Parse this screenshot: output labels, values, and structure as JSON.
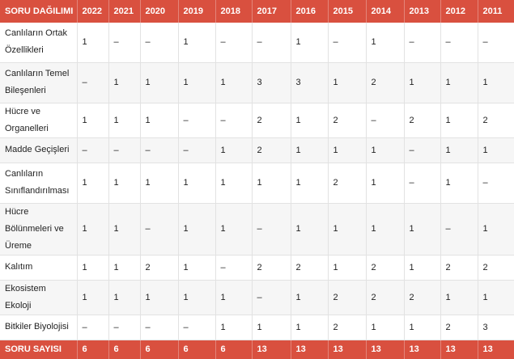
{
  "header": [
    "SORU DAĞILIMI",
    "2022",
    "2021",
    "2020",
    "2019",
    "2018",
    "2017",
    "2016",
    "2015",
    "2014",
    "2013",
    "2012",
    "2011"
  ],
  "rows": [
    {
      "label": "Canlıların Ortak Özellikleri",
      "values": [
        "1",
        "–",
        "–",
        "1",
        "–",
        "–",
        "1",
        "–",
        "1",
        "–",
        "–",
        "–"
      ]
    },
    {
      "label": "Canlıların Temel Bileşenleri",
      "values": [
        "–",
        "1",
        "1",
        "1",
        "1",
        "3",
        "3",
        "1",
        "2",
        "1",
        "1",
        "1"
      ]
    },
    {
      "label": "Hücre ve Organelleri",
      "values": [
        "1",
        "1",
        "1",
        "–",
        "–",
        "2",
        "1",
        "2",
        "–",
        "2",
        "1",
        "2"
      ]
    },
    {
      "label": "Madde Geçişleri",
      "values": [
        "–",
        "–",
        "–",
        "–",
        "1",
        "2",
        "1",
        "1",
        "1",
        "–",
        "1",
        "1"
      ]
    },
    {
      "label": "Canlıların Sınıflandırılması",
      "values": [
        "1",
        "1",
        "1",
        "1",
        "1",
        "1",
        "1",
        "2",
        "1",
        "–",
        "1",
        "–"
      ]
    },
    {
      "label": "Hücre Bölünmeleri ve Üreme",
      "values": [
        "1",
        "1",
        "–",
        "1",
        "1",
        "–",
        "1",
        "1",
        "1",
        "1",
        "–",
        "1"
      ]
    },
    {
      "label": "Kalıtım",
      "values": [
        "1",
        "1",
        "2",
        "1",
        "–",
        "2",
        "2",
        "1",
        "2",
        "1",
        "2",
        "2"
      ]
    },
    {
      "label": "Ekosistem Ekoloji",
      "values": [
        "1",
        "1",
        "1",
        "1",
        "1",
        "–",
        "1",
        "2",
        "2",
        "2",
        "1",
        "1"
      ]
    },
    {
      "label": "Bitkiler Biyolojisi",
      "values": [
        "–",
        "–",
        "–",
        "–",
        "1",
        "1",
        "1",
        "2",
        "1",
        "1",
        "2",
        "3"
      ]
    }
  ],
  "footer": {
    "label": "SORU SAYISI",
    "values": [
      "6",
      "6",
      "6",
      "6",
      "6",
      "13",
      "13",
      "13",
      "13",
      "13",
      "13",
      "13"
    ]
  }
}
